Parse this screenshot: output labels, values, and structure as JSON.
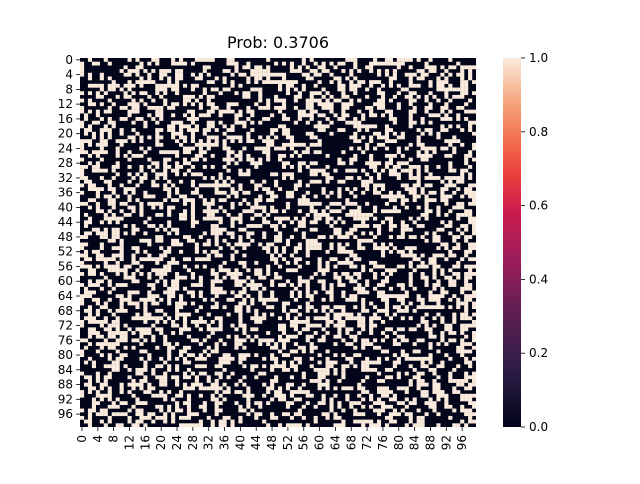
{
  "chart_data": {
    "type": "heatmap",
    "title": "Prob: 0.3706",
    "xlabel": "",
    "ylabel": "",
    "rows": 100,
    "cols": 100,
    "value_range": [
      0,
      1
    ],
    "fill_probability": 0.3706,
    "x_tick_labels": [
      "0",
      "4",
      "8",
      "12",
      "16",
      "20",
      "24",
      "28",
      "32",
      "36",
      "40",
      "44",
      "48",
      "52",
      "56",
      "60",
      "64",
      "68",
      "72",
      "76",
      "80",
      "84",
      "88",
      "92",
      "96"
    ],
    "y_tick_labels": [
      "0",
      "4",
      "8",
      "12",
      "16",
      "20",
      "24",
      "28",
      "32",
      "36",
      "40",
      "44",
      "48",
      "52",
      "56",
      "60",
      "64",
      "68",
      "72",
      "76",
      "80",
      "84",
      "88",
      "92",
      "96"
    ],
    "colorbar": {
      "ticks": [
        "0.0",
        "0.2",
        "0.4",
        "0.6",
        "0.8",
        "1.0"
      ],
      "colormap": "rocket",
      "low_color": "#03051a",
      "high_color": "#faebdd"
    },
    "legend": "none",
    "grid": false
  }
}
